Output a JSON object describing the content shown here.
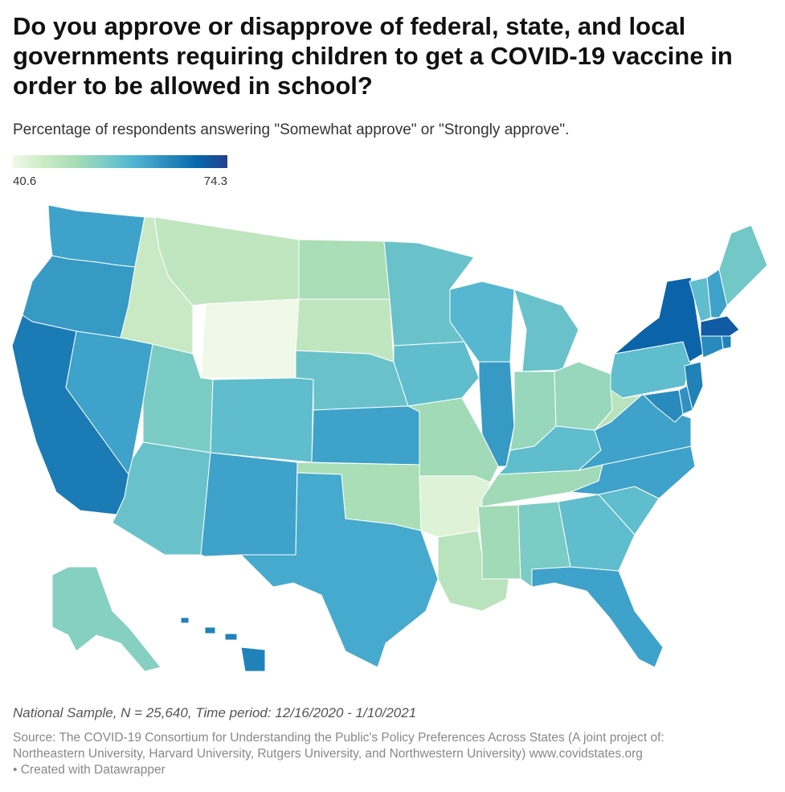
{
  "title": "Do you approve or disapprove of federal, state, and local governments requiring children to get a COVID-19 vaccine in order to be allowed in school?",
  "subtitle": "Percentage of respondents answering \"Somewhat approve\" or \"Strongly approve\".",
  "legend": {
    "min_label": "40.6",
    "max_label": "74.3",
    "min": 40.6,
    "max": 74.3,
    "colors": [
      "#f0f9e8",
      "#ccebc5",
      "#a8ddb5",
      "#7bccc4",
      "#4eb3d3",
      "#2b8cbe",
      "#0868ac",
      "#23408e"
    ]
  },
  "note": "National Sample, N = 25,640, Time period: 12/16/2020 - 1/10/2021",
  "source_line1": "Source: The COVID-19 Consortium for Understanding the Public's Policy Preferences Across States (A joint project of:",
  "source_line2": "Northeastern University, Harvard University, Rutgers University, and Northwestern University) www.covidstates.org",
  "source_line3": "• Created with Datawrapper",
  "chart_data": {
    "type": "choropleth",
    "value_unit": "percent approve",
    "states": {
      "WA": 62,
      "OR": 63,
      "CA": 67,
      "NV": 62,
      "ID": 46,
      "MT": 47,
      "WY": 40.6,
      "UT": 55,
      "AZ": 57,
      "CO": 58,
      "NM": 62,
      "ND": 50,
      "SD": 47,
      "NE": 57,
      "KS": 62,
      "OK": 50,
      "TX": 61,
      "MN": 57,
      "IA": 58,
      "MO": 51,
      "AR": 43,
      "LA": 48,
      "WI": 59,
      "IL": 63,
      "MI": 57,
      "IN": 52,
      "OH": 52,
      "KY": 58,
      "TN": 51,
      "MS": 51,
      "AL": 55,
      "GA": 58,
      "FL": 62,
      "SC": 58,
      "NC": 62,
      "VA": 62,
      "WV": 48,
      "PA": 58,
      "NY": 70,
      "VT": 58,
      "NH": 62,
      "ME": 56,
      "MA": 71,
      "RI": 66,
      "CT": 65,
      "NJ": 66,
      "DE": 64,
      "MD": 65,
      "AK": 54,
      "HI": 66
    }
  }
}
